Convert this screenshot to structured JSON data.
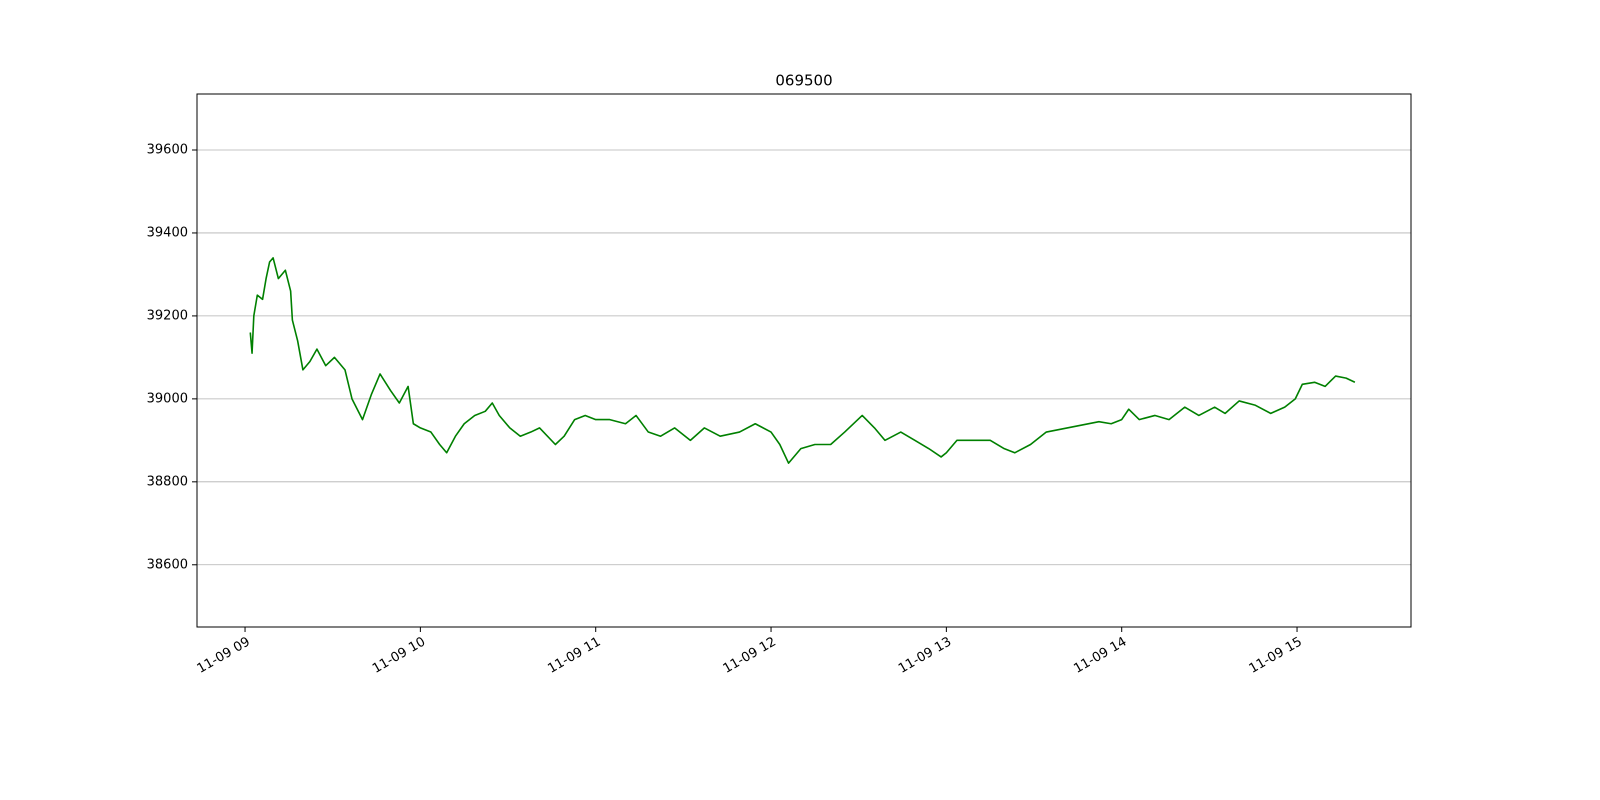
{
  "chart_data": {
    "type": "line",
    "title": "069500",
    "color": "#008000",
    "grid": "y",
    "x": [
      9.03,
      9.04,
      9.05,
      9.07,
      9.1,
      9.12,
      9.14,
      9.16,
      9.19,
      9.23,
      9.26,
      9.27,
      9.3,
      9.33,
      9.37,
      9.41,
      9.46,
      9.51,
      9.57,
      9.61,
      9.67,
      9.72,
      9.77,
      9.83,
      9.88,
      9.93,
      9.96,
      10.0,
      10.06,
      10.11,
      10.15,
      10.2,
      10.25,
      10.31,
      10.37,
      10.41,
      10.45,
      10.51,
      10.57,
      10.63,
      10.68,
      10.77,
      10.82,
      10.88,
      10.94,
      11.0,
      11.08,
      11.17,
      11.23,
      11.3,
      11.37,
      11.45,
      11.54,
      11.62,
      11.71,
      11.82,
      11.91,
      12.0,
      12.05,
      12.1,
      12.17,
      12.25,
      12.34,
      12.42,
      12.52,
      12.59,
      12.65,
      12.74,
      12.82,
      12.9,
      12.97,
      13.0,
      13.06,
      13.16,
      13.25,
      13.33,
      13.39,
      13.48,
      13.57,
      13.87,
      13.94,
      14.0,
      14.04,
      14.1,
      14.19,
      14.27,
      14.36,
      14.44,
      14.53,
      14.59,
      14.67,
      14.76,
      14.85,
      14.93,
      14.99,
      15.03,
      15.1,
      15.16,
      15.22,
      15.28,
      15.33
    ],
    "values": [
      39160,
      39110,
      39200,
      39250,
      39240,
      39290,
      39330,
      39340,
      39290,
      39310,
      39260,
      39190,
      39140,
      39070,
      39090,
      39120,
      39080,
      39100,
      39070,
      39000,
      38950,
      39010,
      39060,
      39020,
      38990,
      39030,
      38940,
      38930,
      38920,
      38890,
      38870,
      38910,
      38940,
      38960,
      38970,
      38990,
      38960,
      38930,
      38910,
      38920,
      38930,
      38890,
      38910,
      38950,
      38960,
      38950,
      38950,
      38940,
      38960,
      38920,
      38910,
      38930,
      38900,
      38930,
      38910,
      38920,
      38940,
      38920,
      38890,
      38845,
      38880,
      38890,
      38890,
      38920,
      38960,
      38930,
      38900,
      38920,
      38900,
      38880,
      38860,
      38870,
      38900,
      38900,
      38900,
      38880,
      38870,
      38890,
      38920,
      38945,
      38940,
      38950,
      38975,
      38950,
      38960,
      38950,
      38980,
      38960,
      38980,
      38965,
      38995,
      38985,
      38965,
      38980,
      39000,
      39035,
      39040,
      39030,
      39055,
      39050,
      39040
    ],
    "xlim": [
      8.726,
      15.65
    ],
    "xticks": [
      {
        "value": 9,
        "label": "11-09 09"
      },
      {
        "value": 10,
        "label": "11-09 10"
      },
      {
        "value": 11,
        "label": "11-09 11"
      },
      {
        "value": 12,
        "label": "11-09 12"
      },
      {
        "value": 13,
        "label": "11-09 13"
      },
      {
        "value": 14,
        "label": "11-09 14"
      },
      {
        "value": 15,
        "label": "11-09 15"
      }
    ],
    "ylim": [
      38450,
      39735
    ],
    "yticks": [
      38600,
      38800,
      39000,
      39200,
      39400,
      39600
    ]
  }
}
